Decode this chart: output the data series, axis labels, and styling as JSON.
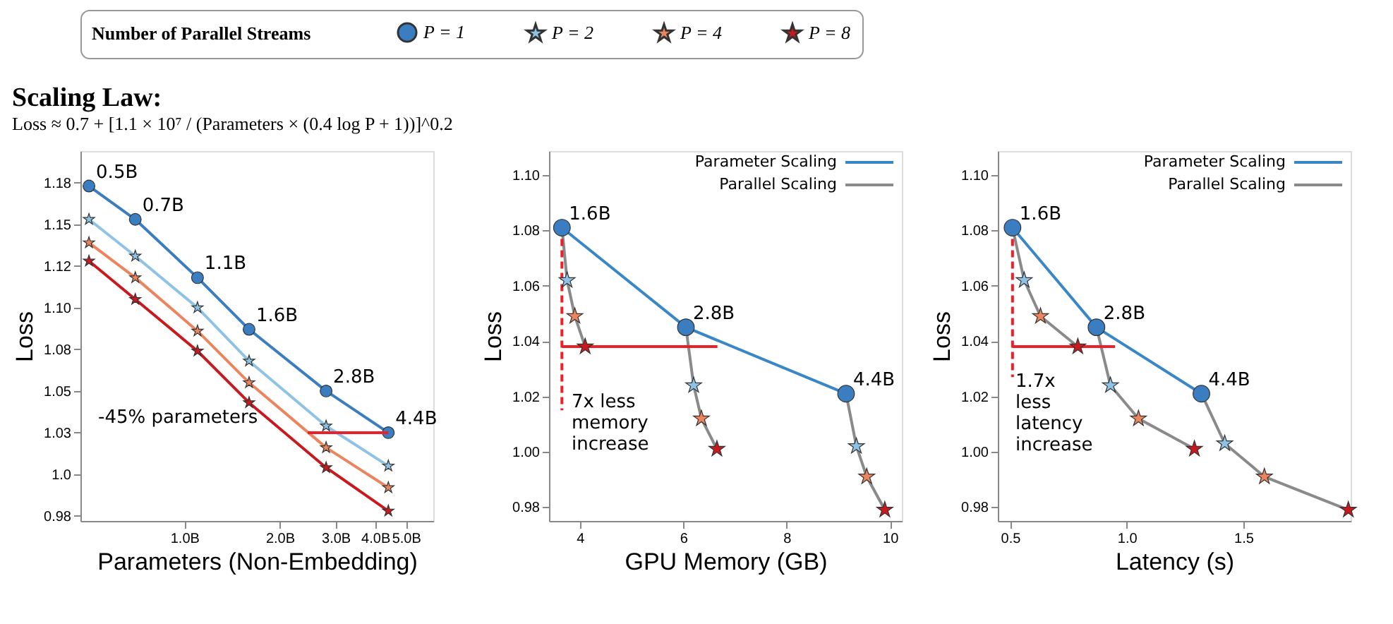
{
  "chart_data": [
    {
      "type": "line",
      "title": "Scaling Law:",
      "subtitle": "Loss ≈ 0.7 + [1.1 × 10⁷ / (Parameters × (0.4 log P + 1))]^0.2",
      "xlabel": "Parameters (Non-Embedding)",
      "ylabel": "Loss",
      "legend_title": "Number of Parallel Streams",
      "legend": "top",
      "log": "x",
      "grid": false,
      "x": [
        0.5,
        0.7,
        1.1,
        1.6,
        2.8,
        4.4
      ],
      "xlim": [
        0.47,
        6.1
      ],
      "xticks": [
        {
          "value": 1,
          "label": "1.0B"
        },
        {
          "value": 2,
          "label": "2.0B"
        },
        {
          "value": 3,
          "label": "3.0B"
        },
        {
          "value": 4,
          "label": "4.0B"
        },
        {
          "value": 5,
          "label": "5.0B"
        }
      ],
      "ylim": [
        0.972,
        1.194
      ],
      "yticks": [
        {
          "value": 0.975,
          "label": "0.98"
        },
        {
          "value": 1.0,
          "label": "1.0"
        },
        {
          "value": 1.025,
          "label": "1.03"
        },
        1.05,
        {
          "value": 1.075,
          "label": "1.08"
        },
        {
          "value": 1.1,
          "label": "1.10"
        },
        {
          "value": 1.125,
          "label": "1.12"
        },
        1.15,
        {
          "value": 1.175,
          "label": "1.18"
        }
      ],
      "series": [
        {
          "name": "P = 1",
          "color": "#3a7dc0",
          "marker": "circle",
          "values": [
            1.173,
            1.153,
            1.118,
            1.087,
            1.05,
            1.025
          ]
        },
        {
          "name": "P = 2",
          "color": "#8fc3e6",
          "marker": "star",
          "values": [
            1.153,
            1.131,
            1.1,
            1.068,
            1.029,
            1.005
          ]
        },
        {
          "name": "P = 4",
          "color": "#ea8560",
          "marker": "star",
          "values": [
            1.139,
            1.118,
            1.086,
            1.055,
            1.016,
            0.992
          ]
        },
        {
          "name": "P = 8",
          "color": "#c8191e",
          "marker": "star",
          "values": [
            1.128,
            1.105,
            1.074,
            1.043,
            1.004,
            0.978
          ]
        },
        {
          "color": "#e8212b",
          "marker": "none",
          "x": [
            4.4,
            2.45
          ],
          "values": [
            1.025,
            1.025
          ]
        }
      ],
      "annotations": [
        {
          "text": "0.5B",
          "x": 0.5,
          "y": 1.173
        },
        {
          "text": "0.7B",
          "x": 0.7,
          "y": 1.153
        },
        {
          "text": "1.1B",
          "x": 1.1,
          "y": 1.118
        },
        {
          "text": "1.6B",
          "x": 1.6,
          "y": 1.087
        },
        {
          "text": "2.8B",
          "x": 2.8,
          "y": 1.05
        },
        {
          "text": "4.4B",
          "x": 4.4,
          "y": 1.025
        },
        "-45% parameters"
      ]
    },
    {
      "type": "scatter",
      "xlabel": "GPU Memory (GB)",
      "ylabel": "Loss",
      "legend": "top right",
      "grid": false,
      "xlim": [
        3.4,
        10.23
      ],
      "xticks": [
        4,
        6,
        8,
        10
      ],
      "ylim": [
        0.975,
        1.1087
      ],
      "yticks": [
        0.98,
        {
          "value": 1.0,
          "label": "1.00"
        },
        1.02,
        1.04,
        1.06,
        1.08,
        {
          "value": 1.1,
          "label": "1.10"
        }
      ],
      "series": [
        {
          "name": "Parameter Scaling",
          "type": "line",
          "color": "#3a87c8",
          "marker": "none",
          "x": [
            3.65,
            6.05,
            9.15
          ],
          "values": [
            1.081,
            1.045,
            1.021
          ]
        },
        {
          "name": "Parallel Scaling",
          "type": "line",
          "color": "#8a8a8a",
          "marker": "none",
          "x": [
            3.65,
            3.75,
            3.9,
            4.1
          ],
          "values": [
            1.081,
            1.062,
            1.049,
            1.038
          ]
        },
        {
          "type": "line",
          "color": "#8a8a8a",
          "marker": "none",
          "x": [
            6.05,
            6.2,
            6.35,
            6.65
          ],
          "values": [
            1.045,
            1.024,
            1.012,
            1.001
          ]
        },
        {
          "type": "line",
          "color": "#8a8a8a",
          "marker": "none",
          "x": [
            9.15,
            9.35,
            9.55,
            9.9
          ],
          "values": [
            1.021,
            1.002,
            0.991,
            0.979
          ]
        },
        {
          "type": "line",
          "color": "#e8212b",
          "marker": "none",
          "line_style": "dashed",
          "x": [
            3.65,
            3.65
          ],
          "values": [
            1.081,
            1.015
          ]
        },
        {
          "type": "line",
          "color": "#e8212b",
          "marker": "none",
          "x": [
            3.65,
            6.66
          ],
          "values": [
            1.038,
            1.038
          ]
        },
        {
          "name": "P = 1",
          "color": "#3a7dc0",
          "marker": "circle",
          "x": [
            3.65,
            6.05,
            9.15
          ],
          "values": [
            1.081,
            1.045,
            1.021
          ]
        },
        {
          "name": "P = 2",
          "color": "#8fc3e6",
          "marker": "star",
          "x": [
            3.75,
            6.2,
            9.35
          ],
          "values": [
            1.062,
            1.024,
            1.002
          ]
        },
        {
          "name": "P = 4",
          "color": "#ea8560",
          "marker": "star",
          "x": [
            3.9,
            6.35,
            9.55
          ],
          "values": [
            1.049,
            1.012,
            0.991
          ]
        },
        {
          "name": "P = 8",
          "color": "#c8191e",
          "marker": "star",
          "x": [
            4.1,
            6.65,
            9.9
          ],
          "values": [
            1.038,
            1.001,
            0.979
          ]
        }
      ],
      "annotations": [
        {
          "text": "1.6B",
          "x": 3.65,
          "y": 1.081
        },
        {
          "text": "2.8B",
          "x": 6.05,
          "y": 1.045
        },
        {
          "text": "4.4B",
          "x": 9.15,
          "y": 1.021
        },
        {
          "text": "7x less memory increase",
          "x": 3.7,
          "y": 1.013
        }
      ]
    },
    {
      "type": "scatter",
      "xlabel": "Latency (s)",
      "ylabel": "Loss",
      "legend": "top right",
      "grid": false,
      "xlim": [
        0.447,
        1.96
      ],
      "xticks": [
        0.5,
        {
          "value": 1,
          "label": "1.0"
        },
        1.5
      ],
      "ylim": [
        0.975,
        1.1087
      ],
      "yticks": [
        0.98,
        {
          "value": 1.0,
          "label": "1.00"
        },
        1.02,
        1.04,
        1.06,
        1.08,
        {
          "value": 1.1,
          "label": "1.10"
        }
      ],
      "series": [
        {
          "name": "Parameter Scaling",
          "type": "line",
          "color": "#3a87c8",
          "marker": "none",
          "x": [
            0.51,
            0.87,
            1.32
          ],
          "values": [
            1.081,
            1.045,
            1.021
          ]
        },
        {
          "name": "Parallel Scaling",
          "type": "line",
          "color": "#8a8a8a",
          "marker": "none",
          "x": [
            0.51,
            0.56,
            0.63,
            0.79
          ],
          "values": [
            1.081,
            1.062,
            1.049,
            1.038
          ]
        },
        {
          "type": "line",
          "color": "#8a8a8a",
          "marker": "none",
          "x": [
            0.87,
            0.93,
            1.05,
            1.29
          ],
          "values": [
            1.045,
            1.024,
            1.012,
            1.001
          ]
        },
        {
          "type": "line",
          "color": "#8a8a8a",
          "marker": "none",
          "x": [
            1.32,
            1.42,
            1.59,
            1.95
          ],
          "values": [
            1.021,
            1.003,
            0.991,
            0.979
          ]
        },
        {
          "type": "line",
          "color": "#e8212b",
          "marker": "none",
          "line_style": "dashed",
          "x": [
            0.51,
            0.51
          ],
          "values": [
            1.081,
            1.027
          ]
        },
        {
          "type": "line",
          "color": "#e8212b",
          "marker": "none",
          "x": [
            0.51,
            0.95
          ],
          "values": [
            1.038,
            1.038
          ]
        },
        {
          "name": "P = 1",
          "color": "#3a7dc0",
          "marker": "circle",
          "x": [
            0.51,
            0.87,
            1.32
          ],
          "values": [
            1.081,
            1.045,
            1.021
          ]
        },
        {
          "name": "P = 2",
          "color": "#8fc3e6",
          "marker": "star",
          "x": [
            0.56,
            0.93,
            1.42
          ],
          "values": [
            1.062,
            1.024,
            1.003
          ]
        },
        {
          "name": "P = 4",
          "color": "#ea8560",
          "marker": "star",
          "x": [
            0.63,
            1.05,
            1.59
          ],
          "values": [
            1.049,
            1.012,
            0.991
          ]
        },
        {
          "name": "P = 8",
          "color": "#c8191e",
          "marker": "star",
          "x": [
            0.79,
            1.29,
            1.95
          ],
          "values": [
            1.038,
            1.001,
            0.979
          ]
        }
      ],
      "annotations": [
        {
          "text": "1.6B",
          "x": 0.51,
          "y": 1.081
        },
        {
          "text": "2.8B",
          "x": 0.87,
          "y": 1.045
        },
        {
          "text": "4.4B",
          "x": 1.32,
          "y": 1.021
        },
        "1.7x less latency increase"
      ]
    }
  ]
}
